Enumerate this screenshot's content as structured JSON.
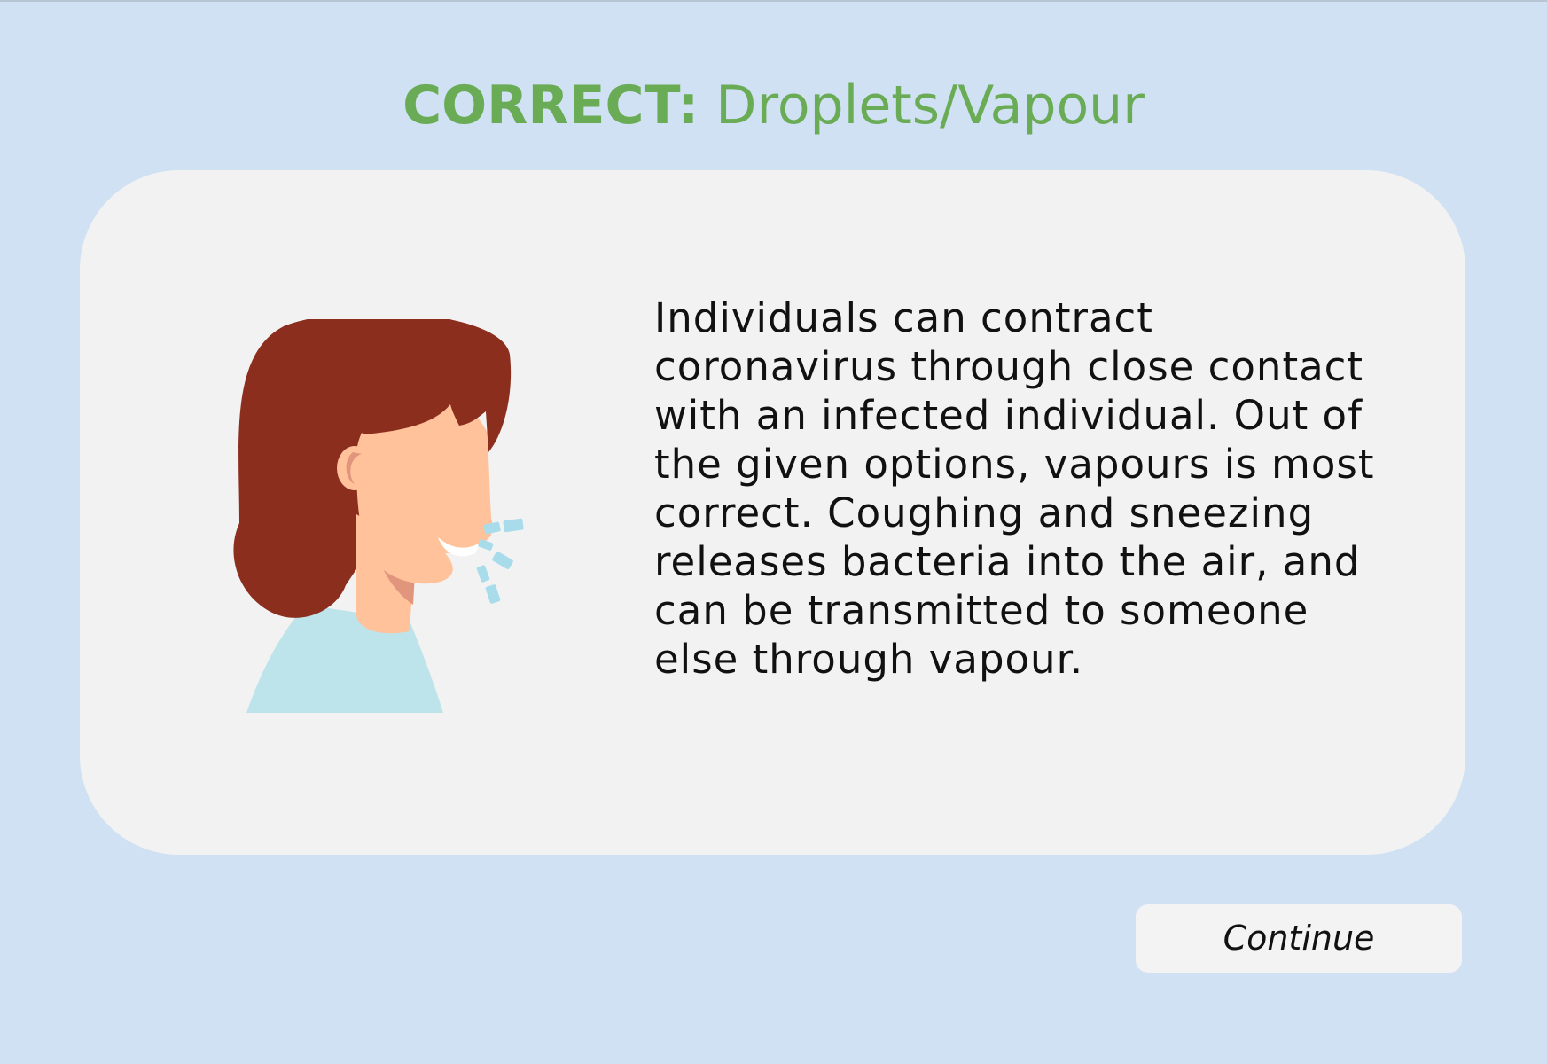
{
  "result": {
    "verdict": "CORRECT:",
    "answer": "Droplets/Vapour"
  },
  "explanation": "Individuals can contract coronavirus through close contact with an infected individual. Out of the given options, vapours is most correct. Coughing and sneezing releases bacteria into the air, and can be transmitted to someone else through vapour.",
  "continue_label": "Continue",
  "illustration": {
    "icon": "coughing-person-icon"
  },
  "colors": {
    "background": "#cfe1f3",
    "card": "#f2f2f2",
    "correct_green": "#6aab55",
    "hair": "#8b2e1e",
    "skin": "#ffc29a",
    "shirt": "#bde4ea",
    "droplets": "#a9dcea"
  }
}
